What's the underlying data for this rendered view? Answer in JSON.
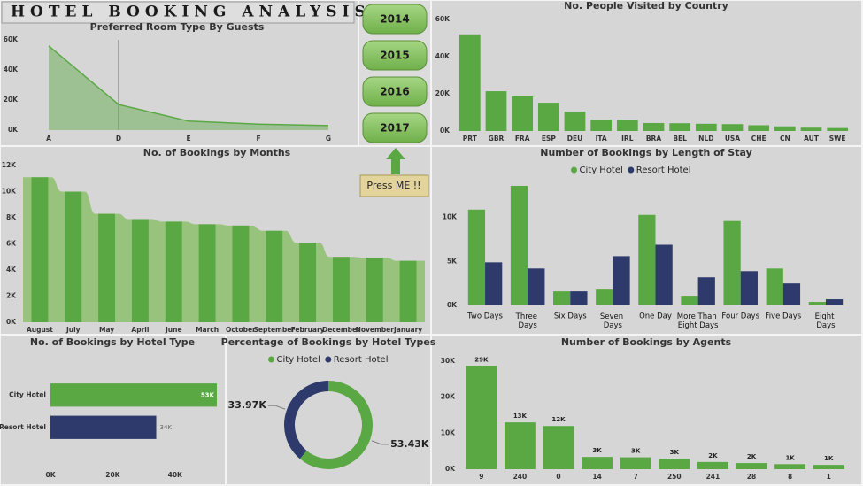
{
  "title": "HOTEL BOOKING ANALYSIS",
  "buttons": [
    "2014",
    "2015",
    "2016",
    "2017"
  ],
  "button_label": "Press ME !!",
  "chart_data": [
    {
      "type": "area",
      "title": "Preferred Room Type By Guests",
      "categories": [
        "A",
        "D",
        "E",
        "F",
        "G"
      ],
      "values": [
        56000,
        17000,
        6000,
        4000,
        3000
      ],
      "color": "#5aa844",
      "ylim": [
        0,
        60000
      ],
      "yticks": [
        {
          "value": 0,
          "label": "0K"
        },
        {
          "value": 20000,
          "label": "20K"
        },
        {
          "value": 40000,
          "label": "40K"
        },
        {
          "value": 60000,
          "label": "60K"
        }
      ]
    },
    {
      "type": "bar",
      "title": "No. People Visited by Country",
      "categories": [
        "PRT",
        "GBR",
        "FRA",
        "ESP",
        "DEU",
        "ITA",
        "IRL",
        "BRA",
        "BEL",
        "NLD",
        "USA",
        "CHE",
        "CN",
        "AUT",
        "SWE"
      ],
      "values": [
        52000,
        21400,
        18600,
        15200,
        10500,
        6200,
        6000,
        4300,
        4200,
        3900,
        3700,
        3100,
        2500,
        1800,
        1600
      ],
      "color": "#5aa844",
      "ylim": [
        0,
        60000
      ],
      "yticks": [
        {
          "value": 0,
          "label": "0K"
        },
        {
          "value": 20000,
          "label": "20K"
        },
        {
          "value": 40000,
          "label": "40K"
        },
        {
          "value": 60000,
          "label": "60K"
        }
      ]
    },
    {
      "type": "bar",
      "title": "No. of Bookings by Months",
      "categories": [
        "August",
        "July",
        "May",
        "April",
        "June",
        "March",
        "October",
        "September",
        "February",
        "December",
        "November",
        "January"
      ],
      "values": [
        11100,
        10000,
        8300,
        7900,
        7700,
        7500,
        7400,
        7000,
        6100,
        5000,
        4950,
        4700
      ],
      "color": "#5aa844",
      "area": true,
      "ylim": [
        0,
        12000
      ],
      "yticks": [
        {
          "value": 0,
          "label": "0K"
        },
        {
          "value": 2000,
          "label": "2K"
        },
        {
          "value": 4000,
          "label": "4K"
        },
        {
          "value": 6000,
          "label": "6K"
        },
        {
          "value": 8000,
          "label": "8K"
        },
        {
          "value": 10000,
          "label": "10K"
        },
        {
          "value": 12000,
          "label": "12K"
        }
      ]
    },
    {
      "type": "bar",
      "title": "Number of Bookings by Length of Stay",
      "categories": [
        "Two Days",
        "Three Days",
        "Six Days",
        "Seven Days",
        "One Day",
        "More Than Eight Days",
        "Four Days",
        "Five Days",
        "Eight Days"
      ],
      "series": [
        {
          "name": "City Hotel",
          "color": "#5aa844",
          "values": [
            10900,
            13600,
            1600,
            1800,
            10300,
            1100,
            9600,
            4200,
            400
          ]
        },
        {
          "name": "Resort Hotel",
          "color": "#2d3a6b",
          "values": [
            4900,
            4200,
            1600,
            5600,
            6900,
            3200,
            3900,
            2500,
            700
          ]
        }
      ],
      "legend": "top",
      "ylim": [
        0,
        14000
      ],
      "yticks": [
        {
          "value": 0,
          "label": "0K"
        },
        {
          "value": 5000,
          "label": "5K"
        },
        {
          "value": 10000,
          "label": "10K"
        }
      ]
    },
    {
      "type": "barh",
      "title": "No. of Bookings by Hotel Type",
      "categories": [
        "City Hotel",
        "Resort Hotel"
      ],
      "values": [
        53430,
        33970
      ],
      "value_labels": [
        "53K",
        "34K"
      ],
      "colors": [
        "#5aa844",
        "#2d3a6b"
      ],
      "xlim": [
        0,
        54000
      ],
      "xticks": [
        {
          "value": 0,
          "label": "0K"
        },
        {
          "value": 20000,
          "label": "20K"
        },
        {
          "value": 40000,
          "label": "40K"
        }
      ]
    },
    {
      "type": "pie",
      "title": "Percentage of Bookings by Hotel Types",
      "donut": true,
      "categories": [
        "City Hotel",
        "Resort Hotel"
      ],
      "values": [
        53430,
        33970
      ],
      "value_labels": [
        "53.43K",
        "33.97K"
      ],
      "colors": [
        "#5aa844",
        "#2d3a6b"
      ],
      "legend": "top"
    },
    {
      "type": "bar",
      "title": "Number of Bookings by Agents",
      "categories": [
        "9",
        "240",
        "0",
        "14",
        "7",
        "250",
        "241",
        "28",
        "8",
        "1"
      ],
      "values": [
        28700,
        13000,
        12000,
        3400,
        3300,
        2900,
        2000,
        1700,
        1400,
        1200
      ],
      "value_labels": [
        "29K",
        "13K",
        "12K",
        "3K",
        "3K",
        "3K",
        "2K",
        "2K",
        "1K",
        "1K"
      ],
      "color": "#5aa844",
      "ylim": [
        0,
        30000
      ],
      "yticks": [
        {
          "value": 0,
          "label": "0K"
        },
        {
          "value": 10000,
          "label": "10K"
        },
        {
          "value": 20000,
          "label": "20K"
        },
        {
          "value": 30000,
          "label": "30K"
        }
      ]
    }
  ]
}
